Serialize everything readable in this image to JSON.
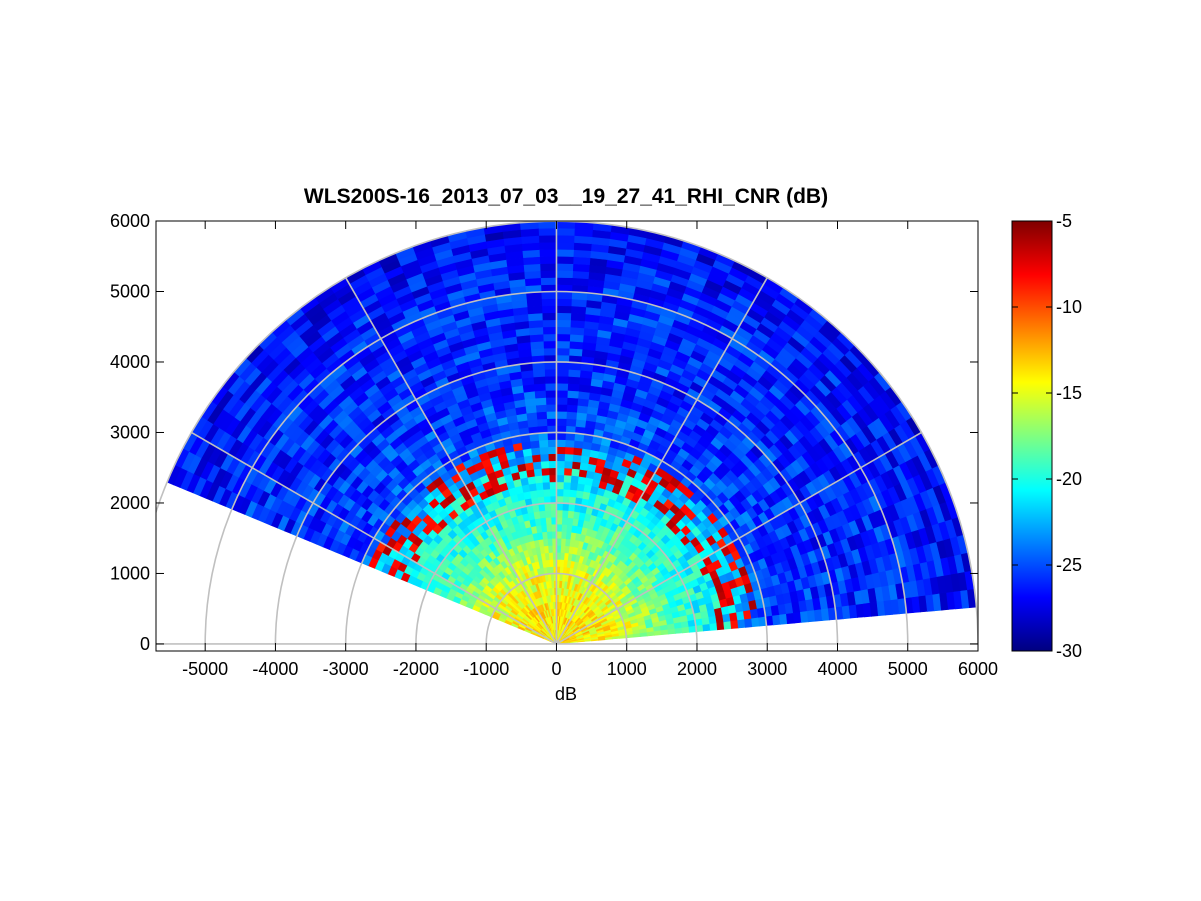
{
  "chart_data": {
    "type": "heatmap",
    "subtype": "polar-rhi-scan",
    "title": "WLS200S-16_2013_07_03__19_27_41_RHI_CNR (dB)",
    "xlabel": "dB",
    "ylabel": "",
    "xlim": [
      -5700,
      6000
    ],
    "ylim": [
      -100,
      6000
    ],
    "x_ticks": [
      -5000,
      -4000,
      -3000,
      -2000,
      -1000,
      0,
      1000,
      2000,
      3000,
      4000,
      5000,
      6000
    ],
    "y_ticks": [
      0,
      1000,
      2000,
      3000,
      4000,
      5000,
      6000
    ],
    "x_tick_labels": [
      "-5000",
      "-4000",
      "-3000",
      "-2000",
      "-1000",
      "0",
      "1000",
      "2000",
      "3000",
      "4000",
      "5000",
      "6000"
    ],
    "y_tick_labels": [
      "0",
      "1000",
      "2000",
      "3000",
      "4000",
      "5000",
      "6000"
    ],
    "colormap": "jet",
    "colorbar": {
      "range": [
        -30,
        -5
      ],
      "ticks": [
        -5,
        -10,
        -15,
        -20,
        -25,
        -30
      ],
      "tick_labels": [
        "-5",
        "-10",
        "-15",
        "-20",
        "-25",
        "-30"
      ]
    },
    "polar_grid": {
      "ring_ranges_m": [
        1000,
        2000,
        3000,
        4000,
        5000,
        6000
      ],
      "spoke_angles_deg": [
        0,
        30,
        60,
        90,
        120,
        150,
        180
      ],
      "grid_color": "#c0c0c0"
    },
    "scan": {
      "azimuth_min_deg": 5,
      "azimuth_max_deg": 157.5,
      "max_range_m": 6000,
      "cnr_by_range_dB": [
        {
          "range_m": 500,
          "cnr": -14
        },
        {
          "range_m": 1000,
          "cnr": -15
        },
        {
          "range_m": 1500,
          "cnr": -18
        },
        {
          "range_m": 2000,
          "cnr": -20
        },
        {
          "range_m": 2500,
          "cnr": -21
        },
        {
          "range_m": 3000,
          "cnr": -25
        },
        {
          "range_m": 4000,
          "cnr": -26
        },
        {
          "range_m": 5000,
          "cnr": -26
        },
        {
          "range_m": 6000,
          "cnr": -27
        }
      ],
      "high_cnr_band": {
        "range_m_from": 2300,
        "range_m_to": 2900,
        "cnr": -6
      }
    }
  }
}
